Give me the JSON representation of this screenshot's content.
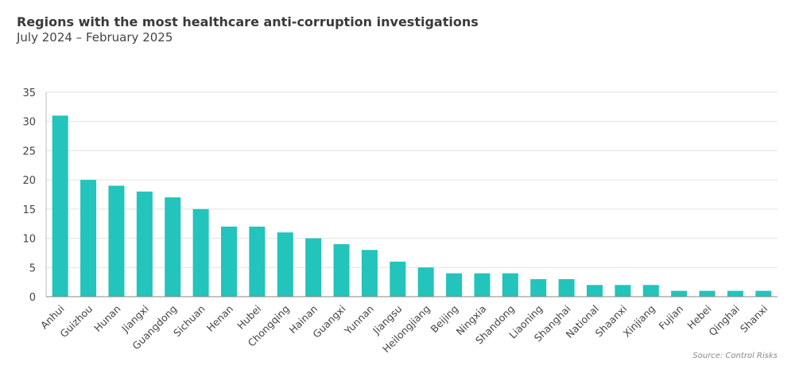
{
  "chart_data": {
    "type": "bar",
    "title": "Regions with the most healthcare anti-corruption investigations",
    "subtitle": "July 2024 – February 2025",
    "source": "Source: Control Risks",
    "categories": [
      "Anhui",
      "Guizhou",
      "Hunan",
      "Jiangxi",
      "Guangdong",
      "Sichuan",
      "Henan",
      "Hubei",
      "Chongqing",
      "Hainan",
      "Guangxi",
      "Yunnan",
      "Jiangsu",
      "Heilongjiang",
      "Beijing",
      "Ningxia",
      "Shandong",
      "Liaoning",
      "Shanghai",
      "National",
      "Shaanxi",
      "Xinjiang",
      "Fujian",
      "Hebei",
      "Qinghai",
      "Shanxi"
    ],
    "values": [
      31,
      20,
      19,
      18,
      17,
      15,
      12,
      12,
      11,
      10,
      9,
      8,
      6,
      5,
      4,
      4,
      4,
      3,
      3,
      2,
      2,
      2,
      1,
      1,
      1,
      1
    ],
    "ylim": [
      0,
      35
    ],
    "yticks": [
      0,
      5,
      10,
      15,
      20,
      25,
      30,
      35
    ],
    "grid": true,
    "bar_color": "#22c4bb"
  }
}
